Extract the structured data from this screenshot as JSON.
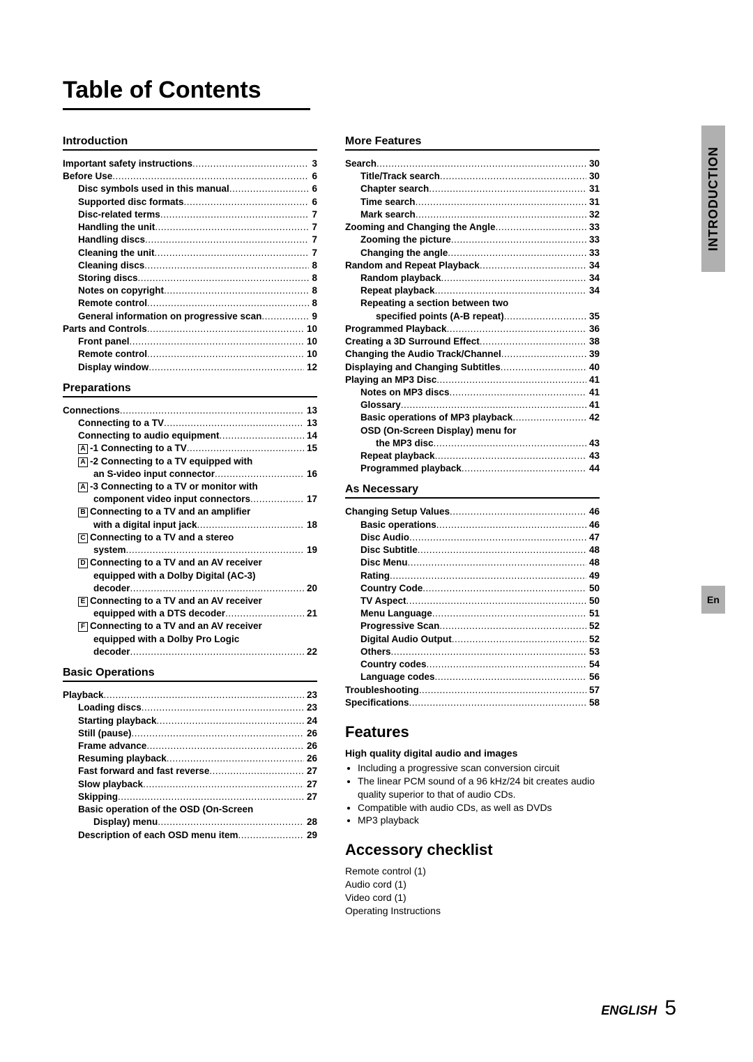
{
  "page": {
    "title": "Table of Contents",
    "side_tab": "INTRODUCTION",
    "lang_tab": "En",
    "footer_lang": "ENGLISH",
    "footer_page": "5"
  },
  "left": {
    "sections": [
      {
        "title": "Introduction",
        "items": [
          {
            "t": "Important safety instructions",
            "p": "3",
            "indent": 0,
            "bold": true
          },
          {
            "t": "Before Use",
            "p": "6",
            "indent": 0,
            "bold": true
          },
          {
            "t": "Disc symbols used in this manual",
            "p": "6",
            "indent": 1,
            "bold": true
          },
          {
            "t": "Supported disc formats",
            "p": "6",
            "indent": 1,
            "bold": true
          },
          {
            "t": "Disc-related terms",
            "p": "7",
            "indent": 1,
            "bold": true
          },
          {
            "t": "Handling the unit",
            "p": "7",
            "indent": 1,
            "bold": true
          },
          {
            "t": "Handling discs",
            "p": "7",
            "indent": 1,
            "bold": true
          },
          {
            "t": "Cleaning the unit",
            "p": "7",
            "indent": 1,
            "bold": true
          },
          {
            "t": "Cleaning discs",
            "p": "8",
            "indent": 1,
            "bold": true
          },
          {
            "t": "Storing discs",
            "p": "8",
            "indent": 1,
            "bold": true
          },
          {
            "t": "Notes on copyright",
            "p": "8",
            "indent": 1,
            "bold": true
          },
          {
            "t": "Remote control",
            "p": "8",
            "indent": 1,
            "bold": true
          },
          {
            "t": "General information on progressive scan",
            "p": "9",
            "indent": 1,
            "bold": true
          },
          {
            "t": "Parts and Controls",
            "p": "10",
            "indent": 0,
            "bold": true
          },
          {
            "t": "Front panel",
            "p": "10",
            "indent": 1,
            "bold": true
          },
          {
            "t": "Remote control",
            "p": "10",
            "indent": 1,
            "bold": true
          },
          {
            "t": "Display window",
            "p": "12",
            "indent": 1,
            "bold": true
          }
        ]
      },
      {
        "title": "Preparations",
        "items": [
          {
            "t": "Connections",
            "p": "13",
            "indent": 0,
            "bold": true
          },
          {
            "t": "Connecting to a TV",
            "p": "13",
            "indent": 1,
            "bold": true
          },
          {
            "t": "Connecting to audio equipment",
            "p": "14",
            "indent": 1,
            "bold": true
          },
          {
            "box": "A",
            "t": "-1 Connecting to a TV",
            "p": "15",
            "indent": 1,
            "bold": true
          },
          {
            "box": "A",
            "t": "-2 Connecting to a TV equipped with",
            "indent": 1,
            "bold": true,
            "cont": [
              {
                "t": "an S-video input connector",
                "p": "16",
                "indent": 2,
                "bold": true
              }
            ]
          },
          {
            "box": "A",
            "t": "-3 Connecting to a TV or monitor with",
            "indent": 1,
            "bold": true,
            "cont": [
              {
                "t": "component video input connectors",
                "p": "17",
                "indent": 2,
                "bold": true
              }
            ]
          },
          {
            "box": "B",
            "t": "Connecting to a TV and an amplifier",
            "indent": 1,
            "bold": true,
            "cont": [
              {
                "t": "with a digital input jack",
                "p": "18",
                "indent": 2,
                "bold": true
              }
            ]
          },
          {
            "box": "C",
            "t": "Connecting to a TV and a stereo",
            "indent": 1,
            "bold": true,
            "cont": [
              {
                "t": "system",
                "p": "19",
                "indent": 2,
                "bold": true
              }
            ]
          },
          {
            "box": "D",
            "t": "Connecting to a TV and an AV receiver",
            "indent": 1,
            "bold": true,
            "cont": [
              {
                "t": "equipped with a Dolby Digital (AC-3)",
                "indent": 2,
                "bold": true
              },
              {
                "t": "decoder",
                "p": "20",
                "indent": 2,
                "bold": true
              }
            ]
          },
          {
            "box": "E",
            "t": "Connecting to a TV and an AV receiver",
            "indent": 1,
            "bold": true,
            "cont": [
              {
                "t": "equipped with a DTS decoder",
                "p": "21",
                "indent": 2,
                "bold": true
              }
            ]
          },
          {
            "box": "F",
            "t": "Connecting to a TV and an AV receiver",
            "indent": 1,
            "bold": true,
            "cont": [
              {
                "t": "equipped with a Dolby Pro Logic",
                "indent": 2,
                "bold": true
              },
              {
                "t": "decoder",
                "p": "22",
                "indent": 2,
                "bold": true
              }
            ]
          }
        ]
      },
      {
        "title": "Basic Operations",
        "items": [
          {
            "t": "Playback",
            "p": "23",
            "indent": 0,
            "bold": true
          },
          {
            "t": "Loading discs",
            "p": "23",
            "indent": 1,
            "bold": true
          },
          {
            "t": "Starting playback",
            "p": "24",
            "indent": 1,
            "bold": true
          },
          {
            "t": "Still (pause)",
            "p": "26",
            "indent": 1,
            "bold": true
          },
          {
            "t": "Frame advance",
            "p": "26",
            "indent": 1,
            "bold": true
          },
          {
            "t": "Resuming playback",
            "p": "26",
            "indent": 1,
            "bold": true
          },
          {
            "t": "Fast forward and fast reverse",
            "p": "27",
            "indent": 1,
            "bold": true
          },
          {
            "t": "Slow playback",
            "p": "27",
            "indent": 1,
            "bold": true
          },
          {
            "t": "Skipping",
            "p": "27",
            "indent": 1,
            "bold": true
          },
          {
            "t": "Basic operation of the OSD (On-Screen",
            "indent": 1,
            "bold": true,
            "cont": [
              {
                "t": "Display) menu",
                "p": "28",
                "indent": 2,
                "bold": true
              }
            ]
          },
          {
            "t": "Description of each OSD menu item",
            "p": "29",
            "indent": 1,
            "bold": true
          }
        ]
      }
    ]
  },
  "right": {
    "sections": [
      {
        "title": "More Features",
        "items": [
          {
            "t": "Search",
            "p": "30",
            "indent": 0,
            "bold": true
          },
          {
            "t": "Title/Track search",
            "p": "30",
            "indent": 1,
            "bold": true
          },
          {
            "t": "Chapter search",
            "p": "31",
            "indent": 1,
            "bold": true
          },
          {
            "t": "Time search",
            "p": "31",
            "indent": 1,
            "bold": true
          },
          {
            "t": "Mark search",
            "p": "32",
            "indent": 1,
            "bold": true
          },
          {
            "t": "Zooming and Changing the Angle",
            "p": "33",
            "indent": 0,
            "bold": true
          },
          {
            "t": "Zooming the picture",
            "p": "33",
            "indent": 1,
            "bold": true
          },
          {
            "t": "Changing the angle",
            "p": "33",
            "indent": 1,
            "bold": true
          },
          {
            "t": "Random and Repeat Playback",
            "p": "34",
            "indent": 0,
            "bold": true
          },
          {
            "t": "Random playback",
            "p": "34",
            "indent": 1,
            "bold": true
          },
          {
            "t": "Repeat playback",
            "p": "34",
            "indent": 1,
            "bold": true
          },
          {
            "t": "Repeating a section between two",
            "indent": 1,
            "bold": true,
            "cont": [
              {
                "t": "specified points (A-B repeat)",
                "p": "35",
                "indent": 2,
                "bold": true
              }
            ]
          },
          {
            "t": "Programmed Playback",
            "p": "36",
            "indent": 0,
            "bold": true
          },
          {
            "t": "Creating a 3D Surround Effect",
            "p": "38",
            "indent": 0,
            "bold": true
          },
          {
            "t": "Changing the Audio Track/Channel",
            "p": "39",
            "indent": 0,
            "bold": true
          },
          {
            "t": "Displaying and Changing Subtitles",
            "p": "40",
            "indent": 0,
            "bold": true
          },
          {
            "t": "Playing an MP3 Disc",
            "p": "41",
            "indent": 0,
            "bold": true
          },
          {
            "t": "Notes on MP3 discs",
            "p": "41",
            "indent": 1,
            "bold": true
          },
          {
            "t": "Glossary",
            "p": "41",
            "indent": 1,
            "bold": true
          },
          {
            "t": "Basic operations of MP3 playback",
            "p": "42",
            "indent": 1,
            "bold": true
          },
          {
            "t": "OSD (On-Screen Display) menu for",
            "indent": 1,
            "bold": true,
            "cont": [
              {
                "t": "the MP3 disc",
                "p": "43",
                "indent": 2,
                "bold": true
              }
            ]
          },
          {
            "t": "Repeat playback",
            "p": "43",
            "indent": 1,
            "bold": true
          },
          {
            "t": "Programmed playback",
            "p": "44",
            "indent": 1,
            "bold": true
          }
        ]
      },
      {
        "title": "As Necessary",
        "items": [
          {
            "t": "Changing Setup Values",
            "p": "46",
            "indent": 0,
            "bold": true
          },
          {
            "t": "Basic operations",
            "p": "46",
            "indent": 1,
            "bold": true
          },
          {
            "t": "Disc Audio",
            "p": "47",
            "indent": 1,
            "bold": true
          },
          {
            "t": "Disc Subtitle",
            "p": "48",
            "indent": 1,
            "bold": true
          },
          {
            "t": "Disc Menu",
            "p": "48",
            "indent": 1,
            "bold": true
          },
          {
            "t": "Rating",
            "p": "49",
            "indent": 1,
            "bold": true
          },
          {
            "t": "Country Code",
            "p": "50",
            "indent": 1,
            "bold": true
          },
          {
            "t": "TV Aspect",
            "p": "50",
            "indent": 1,
            "bold": true
          },
          {
            "t": "Menu Language",
            "p": "51",
            "indent": 1,
            "bold": true
          },
          {
            "t": "Progressive Scan",
            "p": "52",
            "indent": 1,
            "bold": true
          },
          {
            "t": "Digital Audio Output",
            "p": "52",
            "indent": 1,
            "bold": true
          },
          {
            "t": "Others",
            "p": "53",
            "indent": 1,
            "bold": true
          },
          {
            "t": "Country codes",
            "p": "54",
            "indent": 1,
            "bold": true
          },
          {
            "t": "Language codes",
            "p": "56",
            "indent": 1,
            "bold": true
          },
          {
            "t": "Troubleshooting",
            "p": "57",
            "indent": 0,
            "bold": true
          },
          {
            "t": "Specifications",
            "p": "58",
            "indent": 0,
            "bold": true
          }
        ]
      }
    ],
    "features_heading": "Features",
    "features_sub": "High quality digital audio and images",
    "features_list": [
      "Including a progressive scan conversion circuit",
      "The linear PCM sound of a 96 kHz/24 bit creates audio quality superior to that of audio CDs.",
      "Compatible with audio CDs, as well as DVDs",
      "MP3 playback"
    ],
    "accessory_heading": "Accessory checklist",
    "accessory_list": [
      "Remote control (1)",
      "Audio cord (1)",
      "Video cord (1)",
      "Operating Instructions"
    ]
  },
  "colors": {
    "tab_bg": "#b0b0b0",
    "text": "#000000",
    "bg": "#ffffff"
  }
}
